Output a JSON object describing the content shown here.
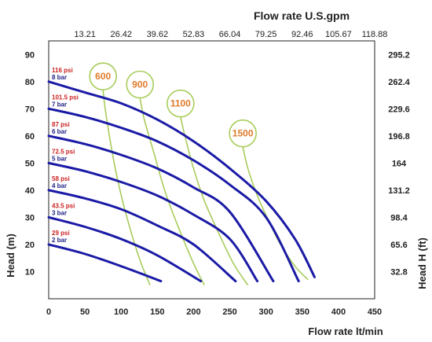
{
  "chart_data": {
    "type": "line",
    "title": "",
    "xlabel": "Flow rate  lt/min",
    "ylabel": "Head (m)",
    "x2label": "Flow rate U.S.gpm",
    "y2label": "Head H (ft)",
    "xlim": [
      0,
      450
    ],
    "ylim": [
      0,
      95
    ],
    "x_ticks": [
      "0",
      "50",
      "100",
      "150",
      "200",
      "250",
      "300",
      "350",
      "400",
      "450"
    ],
    "y_ticks": [
      "10",
      "20",
      "30",
      "40",
      "50",
      "60",
      "70",
      "80",
      "90"
    ],
    "x2_ticks": [
      "13.21",
      "26.42",
      "39.62",
      "52.83",
      "66.04",
      "79.25",
      "92.46",
      "105.67",
      "118.88"
    ],
    "y2_ticks": [
      "32.8",
      "65.6",
      "98.4",
      "131.2",
      "164",
      "196.8",
      "229.6",
      "262.4",
      "295.2"
    ],
    "colors": {
      "pressure_curve": "#1a1aa6",
      "speed_curve": "#a8cc5a",
      "speed_label": "#e07b2a",
      "psi_label": "#cc2222",
      "bar_label": "#222288"
    },
    "series": [
      {
        "psi": "29 psi",
        "bar": "2 bar",
        "x": [
          0,
          50,
          100,
          155
        ],
        "y": [
          20,
          16.5,
          12,
          6.5
        ]
      },
      {
        "psi": "43.5 psi",
        "bar": "3 bar",
        "x": [
          0,
          50,
          100,
          150,
          210
        ],
        "y": [
          30,
          26.5,
          22,
          16,
          6.5
        ]
      },
      {
        "psi": "58 psi",
        "bar": "4 bar",
        "x": [
          0,
          50,
          100,
          150,
          200,
          258
        ],
        "y": [
          40,
          37,
          33,
          27,
          20,
          6.5
        ]
      },
      {
        "psi": "72.5 psi",
        "bar": "5 bar",
        "x": [
          0,
          50,
          100,
          150,
          200,
          250,
          288
        ],
        "y": [
          50,
          47,
          43,
          38,
          31,
          22,
          6.5
        ]
      },
      {
        "psi": "87 psi",
        "bar": "6 bar",
        "x": [
          0,
          50,
          100,
          150,
          200,
          250,
          310
        ],
        "y": [
          60,
          57,
          53,
          48,
          41,
          32,
          6.5
        ]
      },
      {
        "psi": "101.5 psi",
        "bar": "7 bar",
        "x": [
          0,
          50,
          100,
          150,
          200,
          250,
          300,
          345
        ],
        "y": [
          70,
          67,
          63,
          58,
          51,
          42,
          30,
          6.5
        ]
      },
      {
        "psi": "116 psi",
        "bar": "8 bar",
        "x": [
          0,
          50,
          100,
          150,
          200,
          250,
          300,
          340,
          367
        ],
        "y": [
          80,
          76,
          72,
          66,
          58,
          48,
          36,
          22,
          8
        ]
      }
    ],
    "speed_curves": [
      {
        "label": "600",
        "x": [
          75,
          78,
          85,
          95,
          108,
          125,
          140
        ],
        "y": [
          77,
          70,
          58,
          44,
          30,
          15,
          5
        ]
      },
      {
        "label": "900",
        "x": [
          126,
          132,
          145,
          160,
          178,
          200,
          215
        ],
        "y": [
          74,
          66,
          54,
          40,
          27,
          13,
          5
        ]
      },
      {
        "label": "1100",
        "x": [
          182,
          188,
          200,
          215,
          235,
          255,
          275
        ],
        "y": [
          67,
          60,
          48,
          36,
          24,
          13,
          5
        ]
      },
      {
        "label": "1500",
        "x": [
          268,
          275,
          288,
          305,
          320,
          340,
          358
        ],
        "y": [
          56,
          48,
          38,
          28,
          20,
          12,
          7
        ]
      }
    ]
  }
}
